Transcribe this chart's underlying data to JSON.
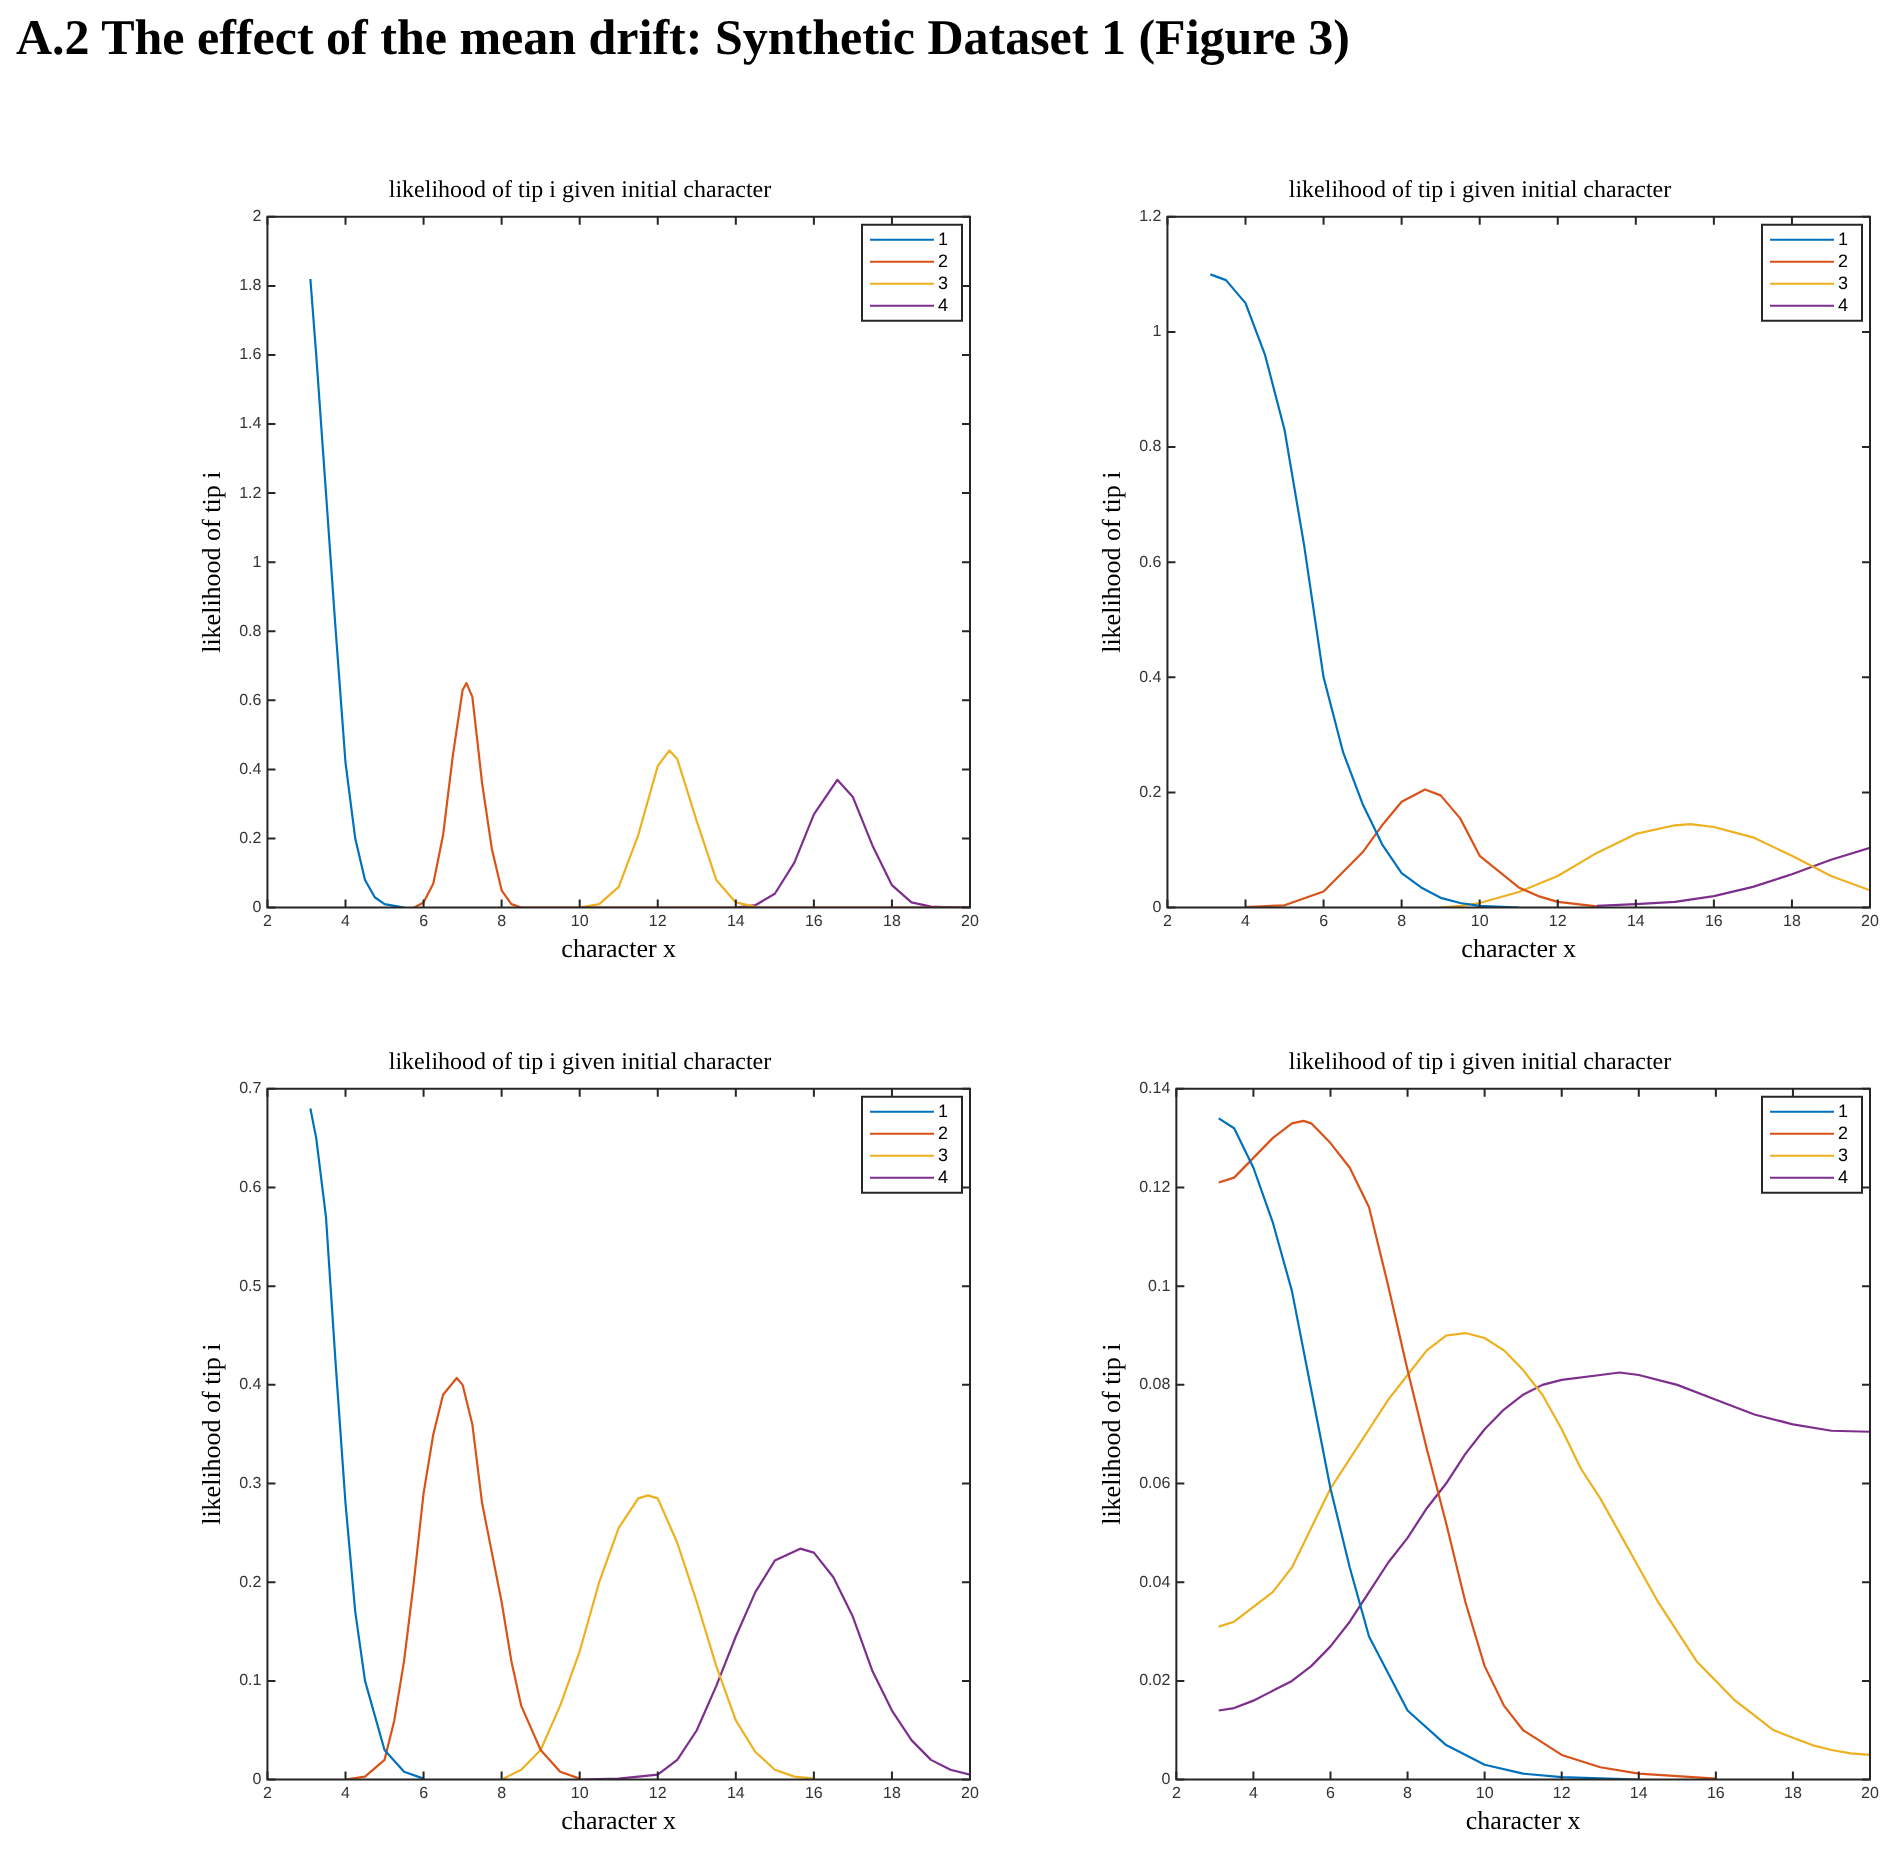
{
  "chart_data": [
    {
      "type": "line",
      "title": "likelihood of tip i given initial character",
      "xlabel": "character x",
      "ylabel": "likelihood of tip i",
      "annotations": [
        "A.2 The effect of the mean drift: Synthetic Dataset 1 (Figure 3)"
      ],
      "xlim": [
        2,
        20
      ],
      "xticks": [
        2,
        4,
        6,
        8,
        10,
        12,
        14,
        16,
        18,
        20
      ],
      "ylim": [
        0,
        2
      ],
      "yticks": [
        0,
        0.2,
        0.4,
        0.6,
        0.8,
        1,
        1.2,
        1.4,
        1.6,
        1.8,
        2
      ],
      "grid": false,
      "legend": "top right",
      "series": [
        {
          "name": "1",
          "color": "#0072bd",
          "x": [
            3.1,
            3.25,
            3.5,
            3.75,
            4,
            4.25,
            4.5,
            4.75,
            5,
            5.5
          ],
          "values": [
            1.82,
            1.6,
            1.2,
            0.8,
            0.42,
            0.2,
            0.08,
            0.03,
            0.01,
            0
          ]
        },
        {
          "name": "2",
          "color": "#d95319",
          "x": [
            5.75,
            6,
            6.25,
            6.5,
            6.75,
            7,
            7.1,
            7.25,
            7.5,
            7.75,
            8,
            8.25,
            8.5,
            20
          ],
          "values": [
            0,
            0.015,
            0.07,
            0.21,
            0.44,
            0.63,
            0.65,
            0.61,
            0.36,
            0.17,
            0.05,
            0.01,
            0,
            0
          ]
        },
        {
          "name": "3",
          "color": "#edb120",
          "x": [
            10,
            10.5,
            11,
            11.5,
            12,
            12.3,
            12.5,
            13,
            13.5,
            14,
            14.5
          ],
          "values": [
            0,
            0.01,
            0.06,
            0.21,
            0.41,
            0.455,
            0.43,
            0.25,
            0.08,
            0.015,
            0.002
          ]
        },
        {
          "name": "4",
          "color": "#7e2f8e",
          "x": [
            14,
            14.5,
            15,
            15.5,
            16,
            16.6,
            17,
            17.5,
            18,
            18.5,
            19,
            19.5,
            20
          ],
          "values": [
            0,
            0.007,
            0.04,
            0.13,
            0.27,
            0.37,
            0.32,
            0.18,
            0.065,
            0.015,
            0.003,
            0.001,
            0
          ]
        }
      ]
    },
    {
      "type": "line",
      "title": "likelihood of tip i given initial character",
      "xlabel": "character x",
      "ylabel": "likelihood of tip i",
      "xlim": [
        2,
        20
      ],
      "xticks": [
        2,
        4,
        6,
        8,
        10,
        12,
        14,
        16,
        18,
        20
      ],
      "ylim": [
        0,
        1.2
      ],
      "yticks": [
        0,
        0.2,
        0.4,
        0.6,
        0.8,
        1,
        1.2
      ],
      "grid": false,
      "legend": "top right",
      "series": [
        {
          "name": "1",
          "color": "#0072bd",
          "x": [
            3.1,
            3.5,
            4,
            4.5,
            5,
            5.5,
            6,
            6.5,
            7,
            7.5,
            8,
            8.5,
            9,
            9.5,
            10,
            11
          ],
          "values": [
            1.1,
            1.09,
            1.05,
            0.96,
            0.83,
            0.63,
            0.4,
            0.27,
            0.18,
            0.11,
            0.06,
            0.035,
            0.017,
            0.008,
            0.003,
            0
          ]
        },
        {
          "name": "2",
          "color": "#d95319",
          "x": [
            4,
            5,
            6,
            7,
            7.5,
            8,
            8.6,
            9,
            9.5,
            10,
            11,
            11.5,
            12,
            13
          ],
          "values": [
            0.001,
            0.004,
            0.028,
            0.096,
            0.143,
            0.184,
            0.205,
            0.195,
            0.155,
            0.09,
            0.035,
            0.02,
            0.01,
            0.002
          ]
        },
        {
          "name": "3",
          "color": "#edb120",
          "x": [
            9,
            9.5,
            10,
            11,
            12,
            13,
            14,
            15,
            15.4,
            16,
            17,
            18,
            19,
            20
          ],
          "values": [
            0,
            0.003,
            0.008,
            0.027,
            0.055,
            0.095,
            0.128,
            0.143,
            0.145,
            0.14,
            0.122,
            0.09,
            0.055,
            0.03
          ]
        },
        {
          "name": "4",
          "color": "#7e2f8e",
          "x": [
            13,
            14,
            15,
            16,
            17,
            18,
            19,
            20
          ],
          "values": [
            0.003,
            0.006,
            0.01,
            0.02,
            0.036,
            0.058,
            0.083,
            0.104
          ]
        }
      ]
    },
    {
      "type": "line",
      "title": "likelihood of tip i given initial character",
      "xlabel": "character x",
      "ylabel": "likelihood of tip i",
      "xlim": [
        2,
        20
      ],
      "xticks": [
        2,
        4,
        6,
        8,
        10,
        12,
        14,
        16,
        18,
        20
      ],
      "ylim": [
        0,
        0.7
      ],
      "yticks": [
        0,
        0.1,
        0.2,
        0.3,
        0.4,
        0.5,
        0.6,
        0.7
      ],
      "grid": false,
      "legend": "top right",
      "series": [
        {
          "name": "1",
          "color": "#0072bd",
          "x": [
            3.1,
            3.25,
            3.5,
            3.75,
            4,
            4.25,
            4.5,
            5,
            5.5,
            6
          ],
          "values": [
            0.68,
            0.65,
            0.57,
            0.42,
            0.28,
            0.17,
            0.1,
            0.03,
            0.008,
            0.001
          ]
        },
        {
          "name": "2",
          "color": "#d95319",
          "x": [
            4,
            4.5,
            5,
            5.25,
            5.5,
            5.75,
            6,
            6.25,
            6.5,
            6.85,
            7,
            7.25,
            7.5,
            7.75,
            8,
            8.25,
            8.5,
            9,
            9.5,
            10
          ],
          "values": [
            0,
            0.003,
            0.02,
            0.06,
            0.12,
            0.2,
            0.29,
            0.35,
            0.39,
            0.407,
            0.4,
            0.36,
            0.28,
            0.23,
            0.18,
            0.12,
            0.075,
            0.03,
            0.008,
            0.001
          ]
        },
        {
          "name": "3",
          "color": "#edb120",
          "x": [
            8,
            8.5,
            9,
            9.5,
            10,
            10.5,
            11,
            11.5,
            11.75,
            12,
            12.5,
            13,
            13.5,
            14,
            14.5,
            15,
            15.5,
            16
          ],
          "values": [
            0,
            0.01,
            0.03,
            0.075,
            0.13,
            0.2,
            0.255,
            0.285,
            0.288,
            0.285,
            0.24,
            0.18,
            0.115,
            0.06,
            0.028,
            0.01,
            0.003,
            0.001
          ]
        },
        {
          "name": "4",
          "color": "#7e2f8e",
          "x": [
            10,
            11,
            12,
            12.5,
            13,
            13.5,
            14,
            14.5,
            15,
            15.65,
            16,
            16.5,
            17,
            17.5,
            18,
            18.5,
            19,
            19.5,
            20
          ],
          "values": [
            0,
            0.001,
            0.005,
            0.02,
            0.05,
            0.095,
            0.145,
            0.19,
            0.222,
            0.234,
            0.23,
            0.205,
            0.165,
            0.11,
            0.07,
            0.04,
            0.02,
            0.01,
            0.005
          ]
        }
      ]
    },
    {
      "type": "line",
      "title": "likelihood of tip i given initial character",
      "xlabel": "character x",
      "ylabel": "likelihood of tip i",
      "xlim": [
        2,
        20
      ],
      "xticks": [
        2,
        4,
        6,
        8,
        10,
        12,
        14,
        16,
        18,
        20
      ],
      "ylim": [
        0,
        0.14
      ],
      "yticks": [
        0,
        0.02,
        0.04,
        0.06,
        0.08,
        0.1,
        0.12,
        0.14
      ],
      "grid": false,
      "legend": "top right",
      "series": [
        {
          "name": "1",
          "color": "#0072bd",
          "x": [
            3.1,
            3.5,
            4,
            4.5,
            5,
            5.5,
            6,
            6.5,
            7,
            8,
            9,
            10,
            11,
            12,
            14
          ],
          "values": [
            0.134,
            0.132,
            0.124,
            0.113,
            0.099,
            0.079,
            0.059,
            0.043,
            0.029,
            0.014,
            0.007,
            0.003,
            0.0012,
            0.0005,
            0
          ]
        },
        {
          "name": "2",
          "color": "#d95319",
          "x": [
            3.1,
            3.5,
            4,
            4.5,
            5,
            5.3,
            5.5,
            6,
            6.5,
            7,
            7.5,
            8,
            8.5,
            9,
            9.5,
            10,
            10.5,
            11,
            12,
            13,
            14,
            16
          ],
          "values": [
            0.121,
            0.122,
            0.126,
            0.13,
            0.133,
            0.1335,
            0.133,
            0.129,
            0.124,
            0.116,
            0.1,
            0.083,
            0.067,
            0.052,
            0.036,
            0.023,
            0.015,
            0.01,
            0.005,
            0.0025,
            0.0012,
            0.0002
          ]
        },
        {
          "name": "3",
          "color": "#edb120",
          "x": [
            3.1,
            3.5,
            4,
            4.5,
            5,
            5.5,
            6,
            6.5,
            7,
            7.5,
            8,
            8.5,
            9,
            9.5,
            10,
            10.5,
            11,
            11.5,
            12,
            12.5,
            13,
            13.5,
            14,
            14.5,
            15,
            15.5,
            16,
            16.5,
            17,
            17.5,
            18,
            18.5,
            19,
            19.5,
            20
          ],
          "values": [
            0.031,
            0.032,
            0.035,
            0.038,
            0.043,
            0.051,
            0.059,
            0.065,
            0.071,
            0.077,
            0.082,
            0.087,
            0.09,
            0.0905,
            0.0895,
            0.087,
            0.083,
            0.078,
            0.071,
            0.063,
            0.057,
            0.05,
            0.043,
            0.036,
            0.03,
            0.024,
            0.02,
            0.016,
            0.013,
            0.01,
            0.0085,
            0.007,
            0.006,
            0.0053,
            0.005
          ]
        },
        {
          "name": "4",
          "color": "#7e2f8e",
          "x": [
            3.1,
            3.5,
            4,
            4.5,
            5,
            5.5,
            6,
            6.5,
            7,
            7.5,
            8,
            8.5,
            9,
            9.5,
            10,
            10.5,
            11,
            11.5,
            12,
            13,
            13.5,
            14,
            15,
            16,
            17,
            18,
            19,
            20
          ],
          "values": [
            0.014,
            0.0145,
            0.016,
            0.018,
            0.02,
            0.023,
            0.027,
            0.032,
            0.038,
            0.044,
            0.049,
            0.055,
            0.06,
            0.066,
            0.071,
            0.075,
            0.078,
            0.08,
            0.081,
            0.082,
            0.0825,
            0.082,
            0.08,
            0.077,
            0.074,
            0.072,
            0.0707,
            0.0705
          ]
        }
      ]
    }
  ]
}
